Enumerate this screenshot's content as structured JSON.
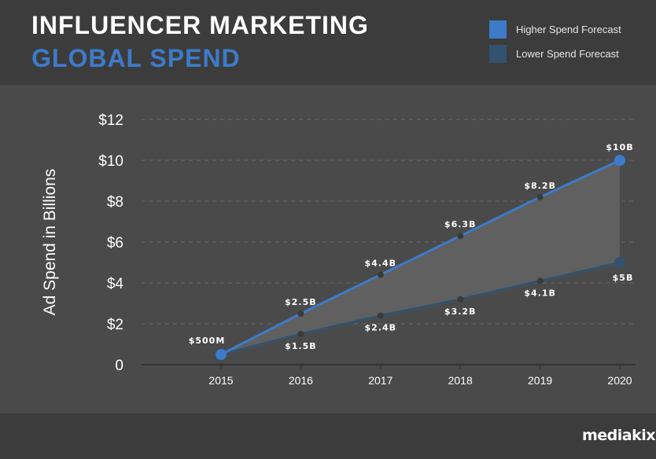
{
  "header": {
    "title_line1": "INFLUENCER MARKETING",
    "title_line2": "GLOBAL SPEND"
  },
  "legend": [
    {
      "label": "Higher Spend Forecast",
      "color": "#3d7bc9"
    },
    {
      "label": "Lower Spend Forecast",
      "color": "#33526e"
    }
  ],
  "logo": "mediakix",
  "chart_data": {
    "type": "line",
    "ylabel": "Ad Spend in Billions",
    "ylim": [
      0,
      12
    ],
    "yticks": [
      "0",
      "$2",
      "$4",
      "$6",
      "$8",
      "$10",
      "$12"
    ],
    "categories": [
      "2015",
      "2016",
      "2017",
      "2018",
      "2019",
      "2020"
    ],
    "grid": true,
    "fill_between": true,
    "series": [
      {
        "name": "Higher Spend Forecast",
        "color": "#3d7bc9",
        "values": [
          0.5,
          2.5,
          4.4,
          6.3,
          8.2,
          10
        ],
        "labels": [
          "$500M",
          "$2.5B",
          "$4.4B",
          "$6.3B",
          "$8.2B",
          "$10B"
        ]
      },
      {
        "name": "Lower Spend Forecast",
        "color": "#33526e",
        "values": [
          0.5,
          1.5,
          2.4,
          3.2,
          4.1,
          5
        ],
        "labels": [
          "",
          "$1.5B",
          "$2.4B",
          "$3.2B",
          "$4.1B",
          "$5B"
        ]
      }
    ]
  }
}
